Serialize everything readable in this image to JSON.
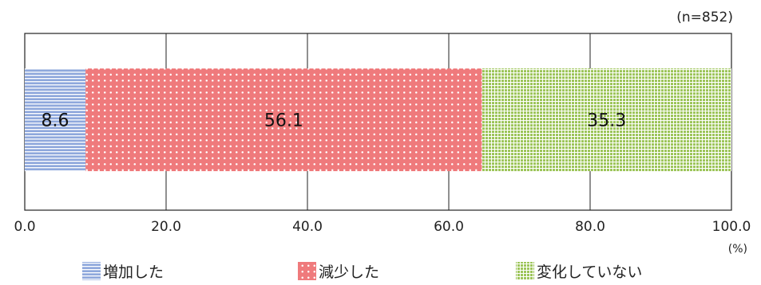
{
  "chart_data": {
    "type": "bar",
    "orientation": "horizontal",
    "stacked": true,
    "sample_note": "(n=852)",
    "unit_label": "(%)",
    "xlim": [
      0,
      100
    ],
    "x_ticks": [
      "0.0",
      "20.0",
      "40.0",
      "60.0",
      "80.0",
      "100.0"
    ],
    "grid": true,
    "legend_position": "bottom",
    "series": [
      {
        "name": "増加した",
        "value": 8.6,
        "label": "8.6",
        "color": "#8fa8dc",
        "pattern": "horizontal-lines"
      },
      {
        "name": "減少した",
        "value": 56.1,
        "label": "56.1",
        "color": "#ef7a7c",
        "pattern": "dots"
      },
      {
        "name": "変化していない",
        "value": 35.3,
        "label": "35.3",
        "color": "#9dc55a",
        "pattern": "grid"
      }
    ]
  }
}
